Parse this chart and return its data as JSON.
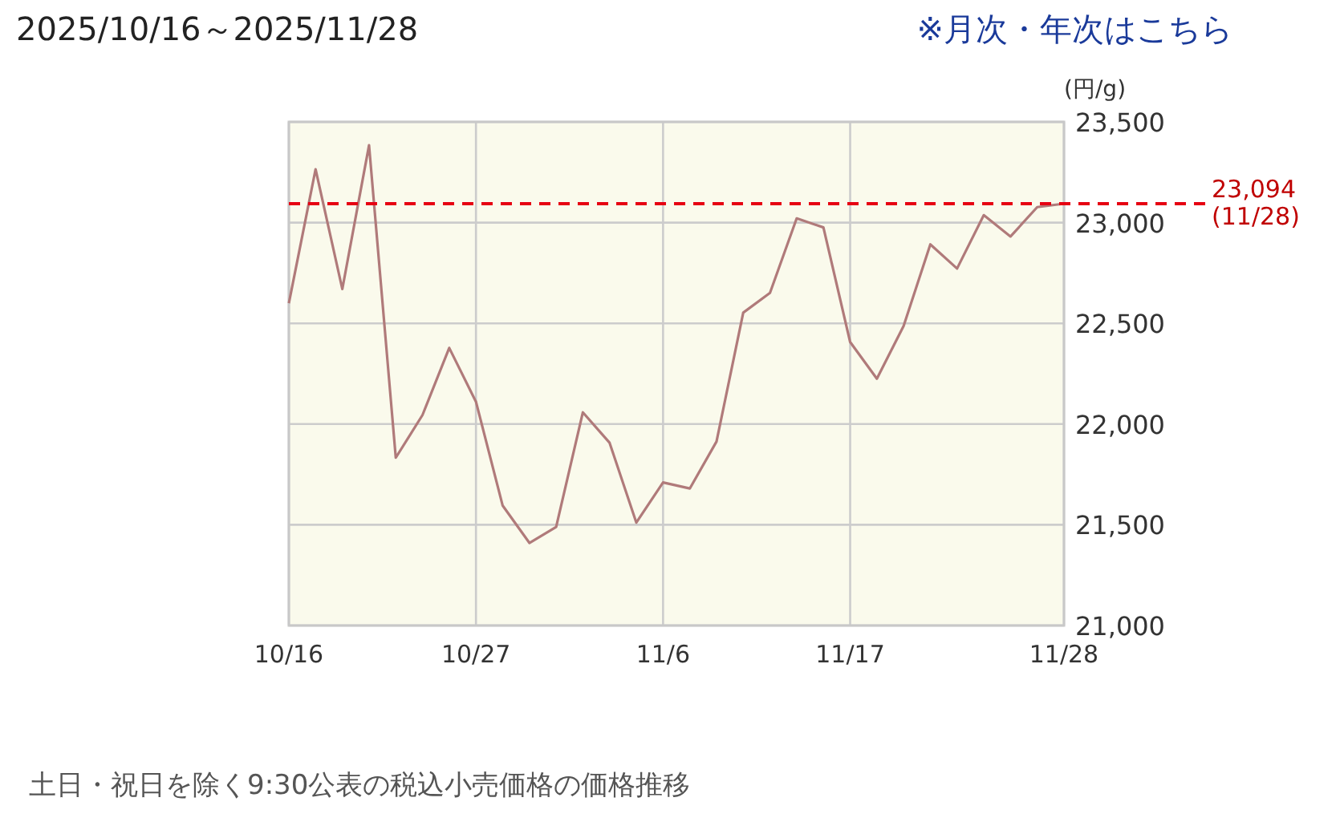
{
  "chart_data": {
    "type": "line",
    "title": "2025/10/16～2025/11/28",
    "ylabel": "(円/g)",
    "annotations": [
      "※月次・年次はこちら",
      "土日・祝日を除く9:30公表の税込小売価格の価格推移"
    ],
    "categories": [
      "10/16",
      null,
      null,
      null,
      null,
      null,
      null,
      "10/27",
      null,
      null,
      null,
      null,
      null,
      null,
      "11/6",
      null,
      null,
      null,
      null,
      null,
      null,
      "11/17",
      null,
      null,
      null,
      null,
      null,
      null,
      null,
      "11/28"
    ],
    "series": [
      {
        "color": "#b07a7a",
        "values": [
          22600,
          23265,
          22670,
          23384,
          21833,
          22045,
          22378,
          22111,
          21595,
          21410,
          21489,
          22058,
          21907,
          21511,
          21710,
          21680,
          21913,
          22553,
          22651,
          23021,
          22976,
          22407,
          22225,
          22487,
          22892,
          22772,
          23037,
          22931,
          23077,
          23094
        ]
      }
    ],
    "ylim": [
      21000,
      23500
    ],
    "yticks": [
      {
        "value": 21000,
        "label": "21,000"
      },
      {
        "value": 21500,
        "label": "21,500"
      },
      {
        "value": 22000,
        "label": "22,000"
      },
      {
        "value": 22500,
        "label": "22,500"
      },
      {
        "value": 23000,
        "label": "23,000"
      },
      {
        "value": 23500,
        "label": "23,500"
      }
    ],
    "ref_lines": [
      {
        "axis": "y",
        "value": 23094,
        "label": "23,094\n(11/28)",
        "color": "#e60012",
        "line_style": "dashed"
      }
    ],
    "grid": true,
    "line_style": "solid"
  }
}
